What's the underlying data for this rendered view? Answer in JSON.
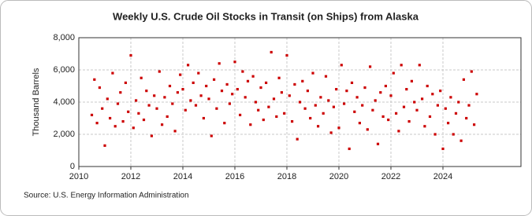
{
  "chart_data": {
    "type": "scatter",
    "title": "Weekly U.S. Crude Oil Stocks in Transit (on Ships) from Alaska",
    "y_label": "Thousand Barrels",
    "source": "Source: U.S. Energy Information Administration",
    "color": "#cc0000",
    "grid": true,
    "xlim": [
      2010,
      2027
    ],
    "ylim": [
      0,
      8000
    ],
    "xticks": [
      2010,
      2012,
      2014,
      2016,
      2018,
      2020,
      2022,
      2024
    ],
    "yticks": [
      0,
      {
        "value": 2000,
        "label": "2,000"
      },
      {
        "value": 4000,
        "label": "4,000"
      },
      {
        "value": 6000,
        "label": "6,000"
      },
      {
        "value": 8000,
        "label": "8,000"
      }
    ],
    "x": [
      2010.5,
      2010.6,
      2010.7,
      2010.8,
      2010.9,
      2011.0,
      2011.1,
      2011.2,
      2011.3,
      2011.4,
      2011.5,
      2011.6,
      2011.7,
      2011.8,
      2011.9,
      2012.0,
      2012.1,
      2012.2,
      2012.3,
      2012.4,
      2012.5,
      2012.6,
      2012.7,
      2012.8,
      2012.9,
      2013.0,
      2013.1,
      2013.2,
      2013.3,
      2013.4,
      2013.5,
      2013.6,
      2013.7,
      2013.8,
      2013.9,
      2014.0,
      2014.1,
      2014.2,
      2014.3,
      2014.4,
      2014.5,
      2014.6,
      2014.7,
      2014.8,
      2014.9,
      2015.0,
      2015.1,
      2015.2,
      2015.3,
      2015.4,
      2015.5,
      2015.6,
      2015.7,
      2015.8,
      2015.9,
      2016.0,
      2016.1,
      2016.2,
      2016.3,
      2016.4,
      2016.5,
      2016.6,
      2016.7,
      2016.8,
      2016.9,
      2017.0,
      2017.1,
      2017.2,
      2017.3,
      2017.4,
      2017.5,
      2017.6,
      2017.7,
      2017.8,
      2017.9,
      2018.0,
      2018.1,
      2018.2,
      2018.3,
      2018.4,
      2018.5,
      2018.6,
      2018.7,
      2018.8,
      2018.9,
      2019.0,
      2019.1,
      2019.2,
      2019.3,
      2019.4,
      2019.5,
      2019.6,
      2019.7,
      2019.8,
      2019.9,
      2020.0,
      2020.1,
      2020.2,
      2020.3,
      2020.4,
      2020.5,
      2020.6,
      2020.7,
      2020.8,
      2020.9,
      2021.0,
      2021.1,
      2021.2,
      2021.3,
      2021.4,
      2021.5,
      2021.6,
      2021.7,
      2021.8,
      2021.9,
      2022.0,
      2022.1,
      2022.2,
      2022.3,
      2022.4,
      2022.5,
      2022.6,
      2022.7,
      2022.8,
      2022.9,
      2023.0,
      2023.1,
      2023.2,
      2023.3,
      2023.4,
      2023.5,
      2023.6,
      2023.7,
      2023.8,
      2023.9,
      2024.0,
      2024.1,
      2024.2,
      2024.3,
      2024.4,
      2024.5,
      2024.6,
      2024.7,
      2024.8,
      2024.9,
      2025.0,
      2025.1,
      2025.2,
      2025.3
    ],
    "values": [
      3200,
      5400,
      2700,
      4900,
      3600,
      1300,
      4200,
      3000,
      5800,
      2500,
      3900,
      4600,
      2800,
      5200,
      3400,
      6900,
      2400,
      4100,
      3300,
      5500,
      2900,
      4700,
      3800,
      1900,
      4400,
      3600,
      5900,
      2600,
      4300,
      3100,
      5000,
      3900,
      2200,
      4600,
      5700,
      4800,
      3500,
      6300,
      4100,
      5200,
      3800,
      5800,
      4400,
      3000,
      5000,
      4200,
      1900,
      5400,
      3600,
      6400,
      4700,
      2700,
      5100,
      3900,
      4500,
      6500,
      4800,
      3200,
      5900,
      4300,
      5300,
      2600,
      5600,
      4000,
      3500,
      4900,
      2900,
      5200,
      3700,
      7100,
      4200,
      3100,
      5500,
      4600,
      3300,
      6900,
      4400,
      2800,
      5100,
      1700,
      4000,
      5300,
      3600,
      4700,
      3000,
      5800,
      3800,
      2500,
      4300,
      3300,
      5600,
      4100,
      2100,
      3700,
      4800,
      2400,
      6300,
      3900,
      4700,
      1100,
      5200,
      3400,
      4300,
      2700,
      3800,
      4900,
      2300,
      6200,
      3500,
      4100,
      1400,
      4600,
      3100,
      5000,
      2900,
      4400,
      5800,
      3300,
      2200,
      6300,
      3700,
      4800,
      2800,
      5300,
      4000,
      3500,
      6300,
      4200,
      2500,
      5000,
      3100,
      4500,
      2000,
      3800,
      4700,
      1100,
      3600,
      2700,
      4300,
      2000,
      3300,
      4000,
      1600,
      5400,
      3000,
      3800,
      5900,
      2600,
      4500
    ]
  }
}
